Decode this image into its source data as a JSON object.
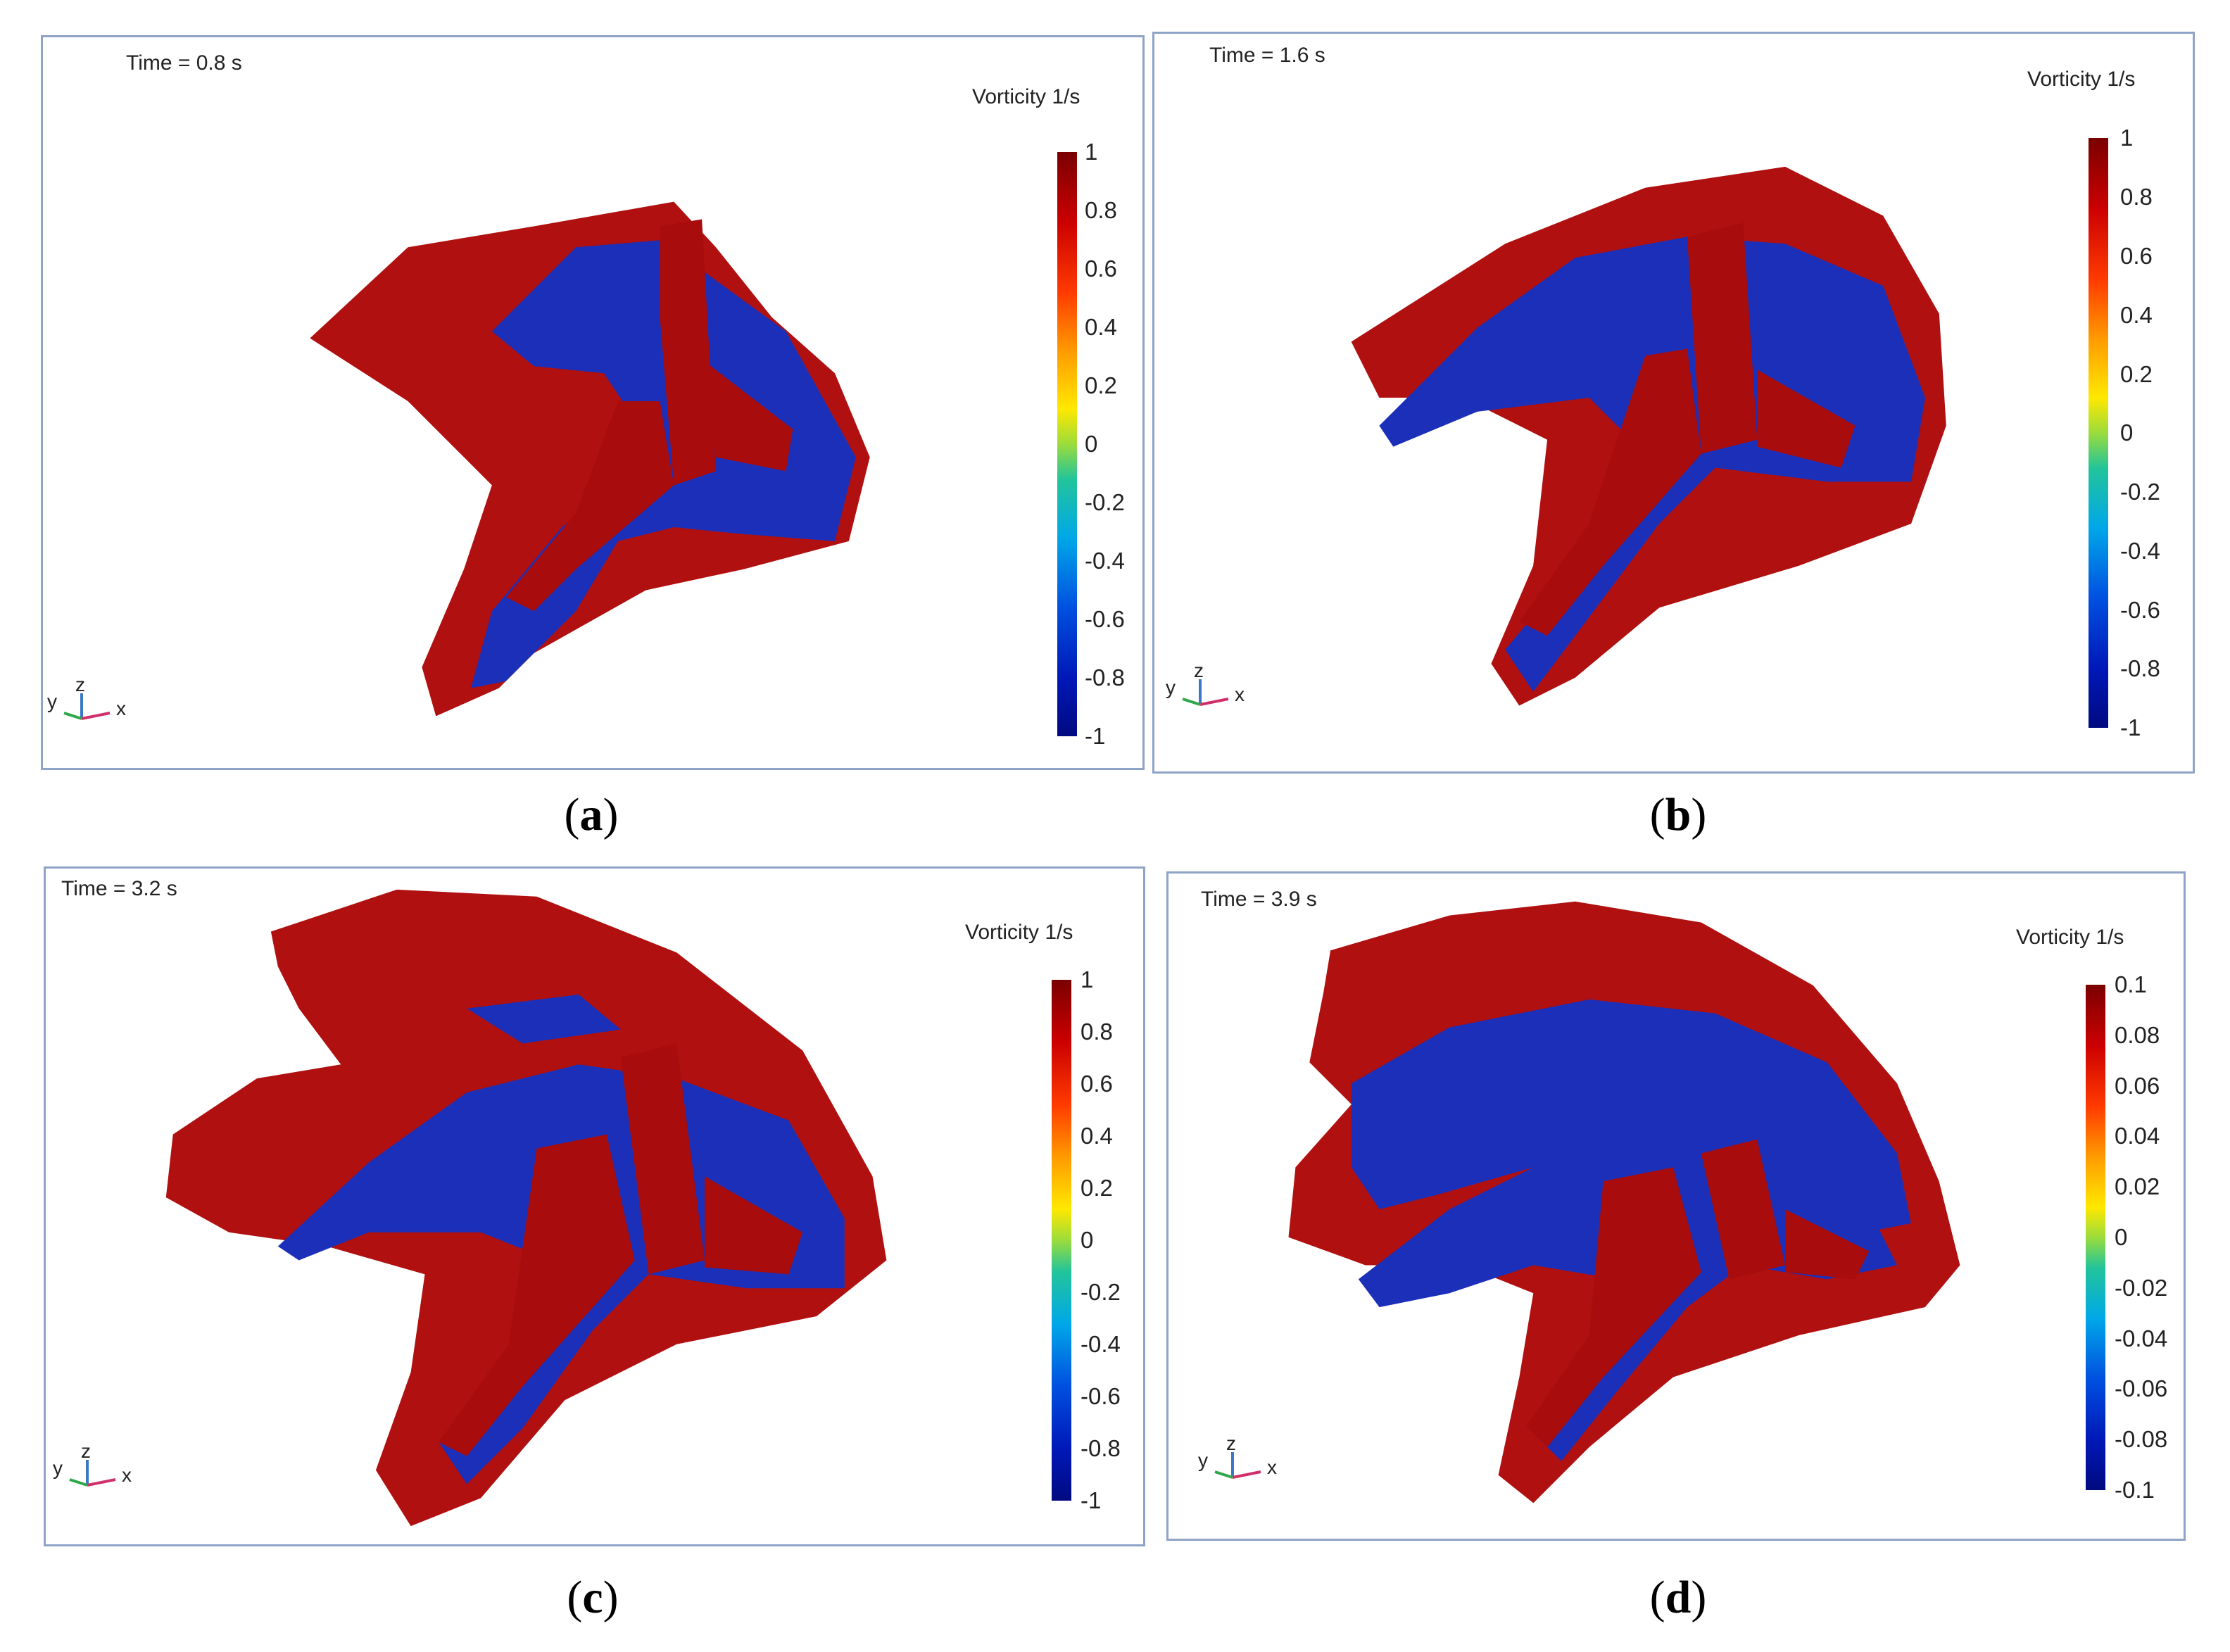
{
  "panels": [
    {
      "time_label": "Time = 0.8 s",
      "colorbar_title": "Vorticity  1/s",
      "ticks": [
        "1",
        "0.8",
        "0.6",
        "0.4",
        "0.2",
        "0",
        "-0.2",
        "-0.4",
        "-0.6",
        "-0.8",
        "-1"
      ],
      "caption_letter": "a",
      "axes": {
        "y": "y",
        "z": "z",
        "x": "x"
      }
    },
    {
      "time_label": "Time = 1.6 s",
      "colorbar_title": "Vorticity  1/s",
      "ticks": [
        "1",
        "0.8",
        "0.6",
        "0.4",
        "0.2",
        "0",
        "-0.2",
        "-0.4",
        "-0.6",
        "-0.8",
        "-1"
      ],
      "caption_letter": "b",
      "axes": {
        "y": "y",
        "z": "z",
        "x": "x"
      }
    },
    {
      "time_label": "Time = 3.2 s",
      "colorbar_title": "Vorticity  1/s",
      "ticks": [
        "1",
        "0.8",
        "0.6",
        "0.4",
        "0.2",
        "0",
        "-0.2",
        "-0.4",
        "-0.6",
        "-0.8",
        "-1"
      ],
      "caption_letter": "c",
      "axes": {
        "y": "y",
        "z": "z",
        "x": "x"
      }
    },
    {
      "time_label": "Time = 3.9 s",
      "colorbar_title": "Vorticity  1/s",
      "ticks": [
        "0.1",
        "0.08",
        "0.06",
        "0.04",
        "0.02",
        "0",
        "-0.02",
        "-0.04",
        "-0.06",
        "-0.08",
        "-0.1"
      ],
      "caption_letter": "d",
      "axes": {
        "y": "y",
        "z": "z",
        "x": "x"
      }
    }
  ],
  "colors": {
    "positive": "#b01010",
    "negative": "#1c2fb8",
    "border": "#8fa3c7"
  }
}
